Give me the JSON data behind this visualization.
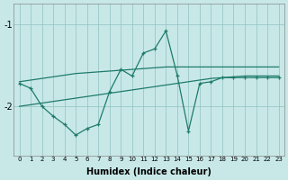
{
  "xlabel": "Humidex (Indice chaleur)",
  "x": [
    0,
    1,
    2,
    3,
    4,
    5,
    6,
    7,
    8,
    9,
    10,
    11,
    12,
    13,
    14,
    15,
    16,
    17,
    18,
    19,
    20,
    21,
    22,
    23
  ],
  "line_main": [
    -1.72,
    -1.78,
    -2.0,
    -2.12,
    -2.22,
    -2.35,
    -2.27,
    -2.22,
    -1.82,
    -1.55,
    -1.63,
    -1.35,
    -1.3,
    -1.08,
    -1.62,
    -2.3,
    -1.72,
    -1.7,
    -1.65,
    -1.65,
    -1.65,
    -1.65,
    -1.65,
    -1.65
  ],
  "line_upper": [
    -1.7,
    -1.68,
    -1.66,
    -1.64,
    -1.62,
    -1.6,
    -1.59,
    -1.58,
    -1.57,
    -1.56,
    -1.55,
    -1.54,
    -1.53,
    -1.52,
    -1.52,
    -1.52,
    -1.52,
    -1.52,
    -1.52,
    -1.52,
    -1.52,
    -1.52,
    -1.52,
    -1.52
  ],
  "line_lower": [
    -2.0,
    -1.98,
    -1.96,
    -1.94,
    -1.92,
    -1.9,
    -1.88,
    -1.86,
    -1.84,
    -1.82,
    -1.8,
    -1.78,
    -1.76,
    -1.74,
    -1.72,
    -1.7,
    -1.68,
    -1.66,
    -1.65,
    -1.64,
    -1.63,
    -1.63,
    -1.63,
    -1.63
  ],
  "line_color": "#1e7b6a",
  "bg_color": "#c8e8e8",
  "grid_color": "#90c0c0",
  "ylim": [
    -2.6,
    -0.75
  ],
  "yticks": [
    -2,
    -1
  ],
  "xlim": [
    -0.5,
    23.5
  ]
}
